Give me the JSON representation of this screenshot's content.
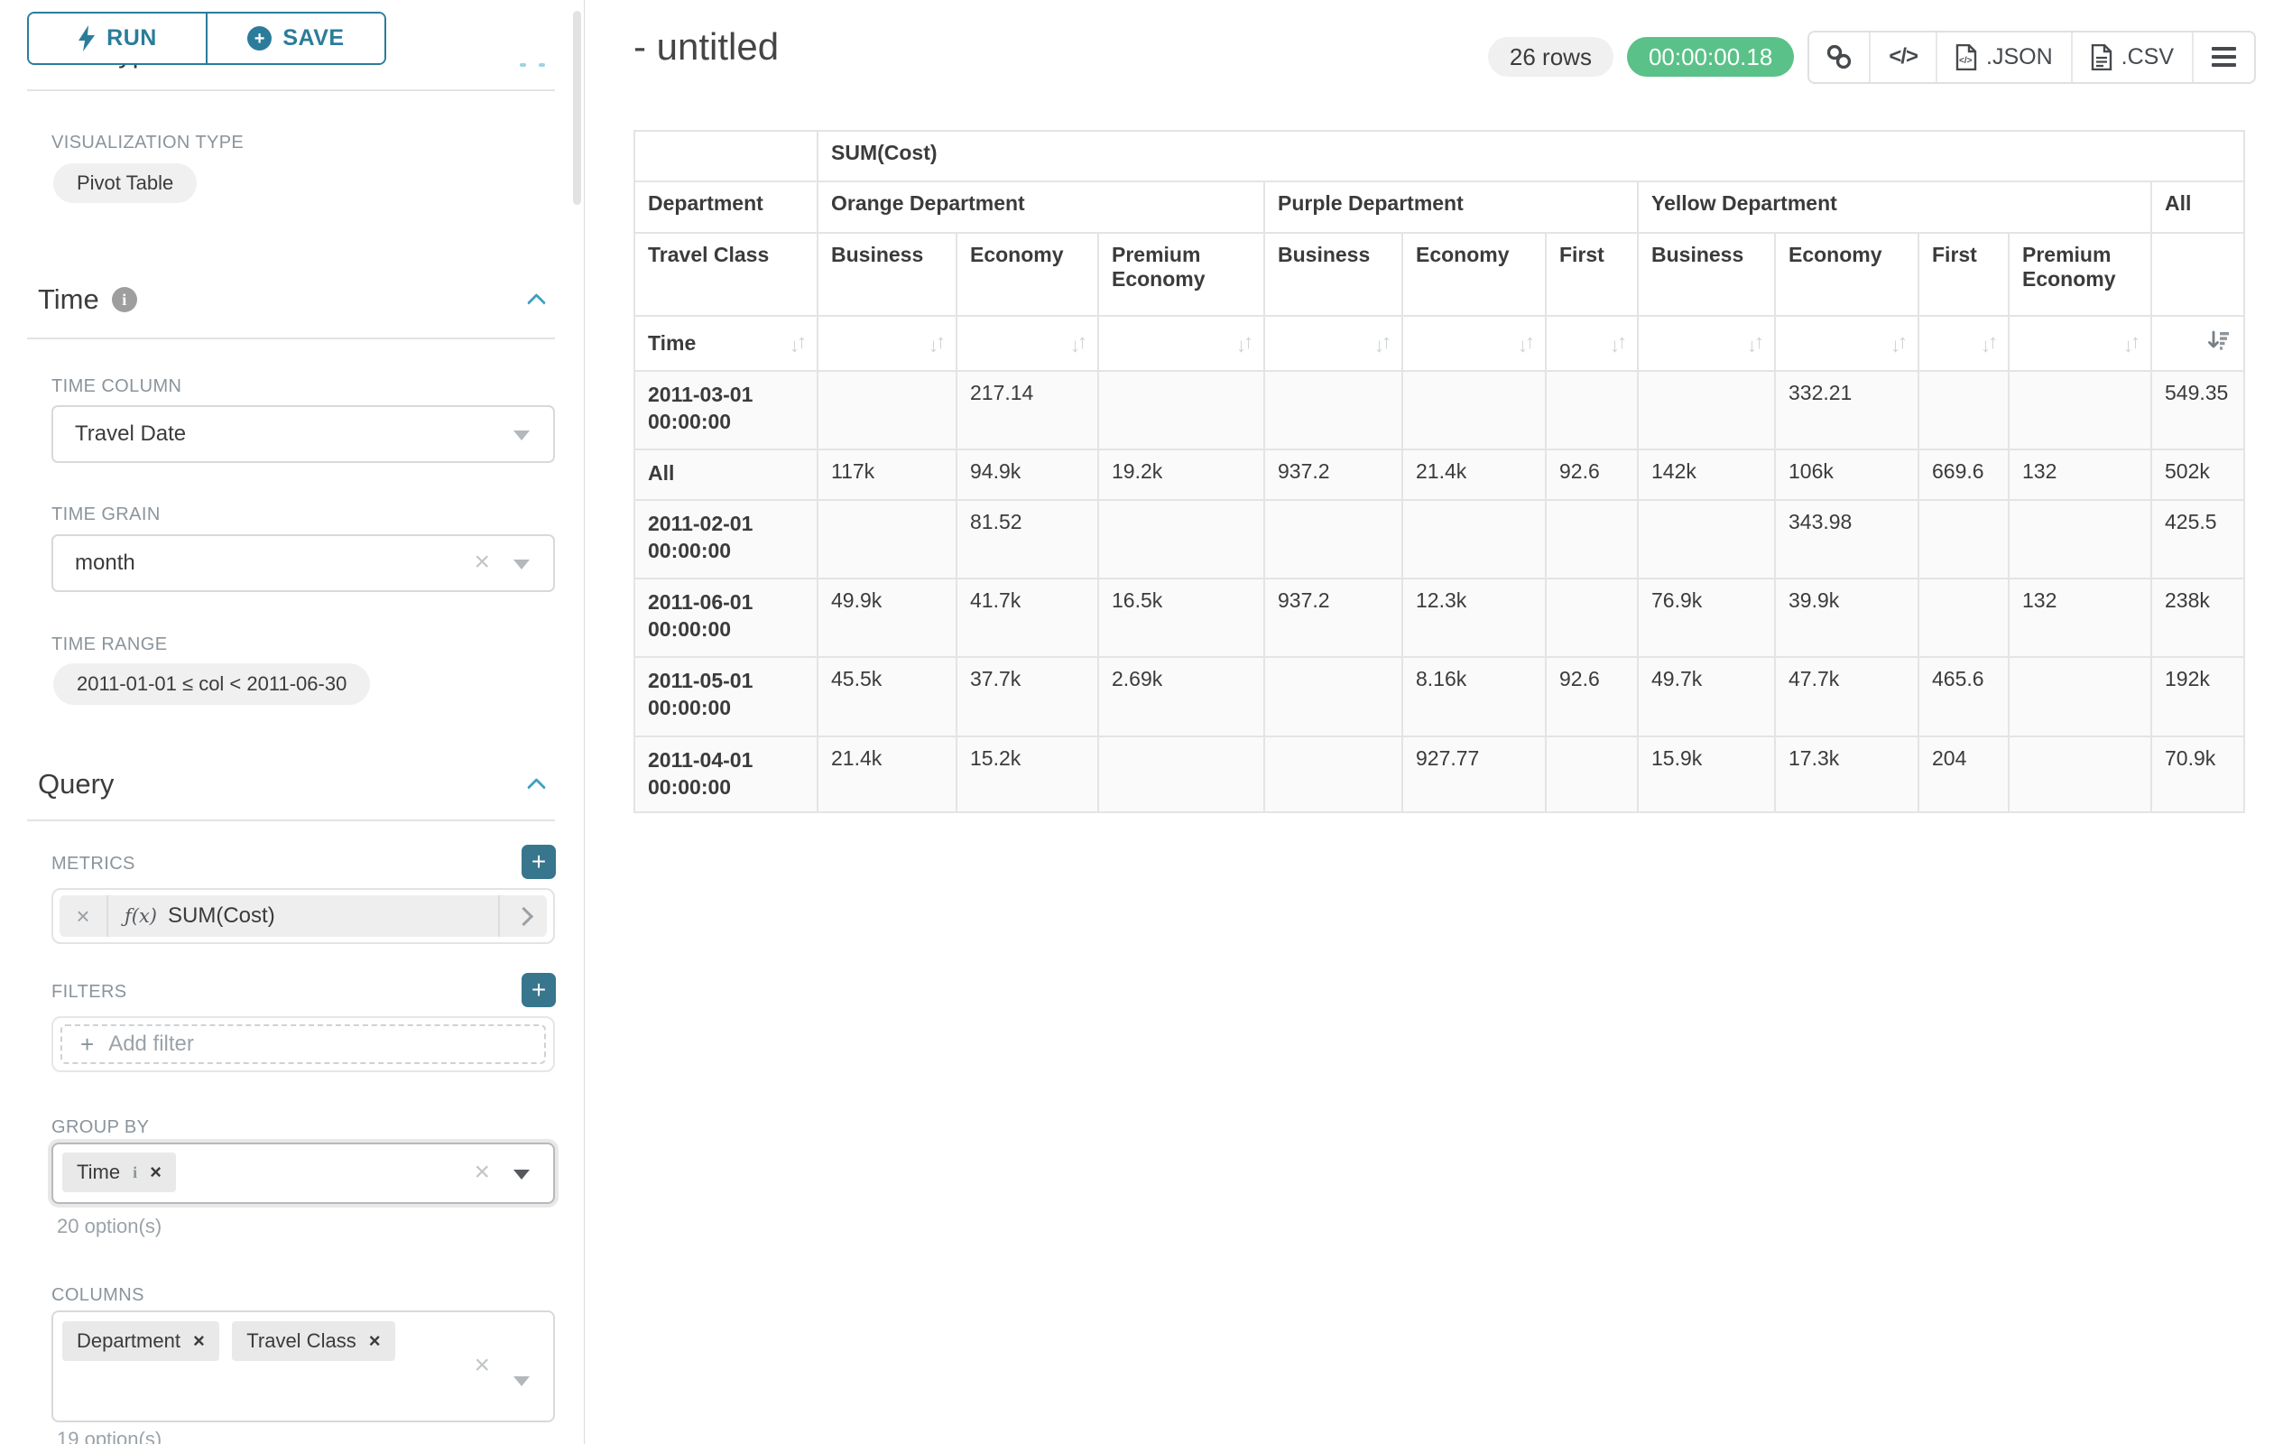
{
  "colors": {
    "accent_teal": "#2b7c9b",
    "plus_teal": "#37768c",
    "timer_green": "#5ac189"
  },
  "sidebar": {
    "run_button": "RUN",
    "save_button": "SAVE",
    "chart_type_heading": "Chart Type",
    "viz_type_label": "VISUALIZATION TYPE",
    "viz_type_value": "Pivot Table",
    "time": {
      "title": "Time",
      "column_label": "TIME COLUMN",
      "column_value": "Travel Date",
      "grain_label": "TIME GRAIN",
      "grain_value": "month",
      "range_label": "TIME RANGE",
      "range_value": "2011-01-01 ≤ col < 2011-06-30"
    },
    "query": {
      "title": "Query",
      "metrics_label": "METRICS",
      "metric_prefix": "ƒ(x)",
      "metric_value": "SUM(Cost)",
      "filters_label": "FILTERS",
      "add_filter_placeholder": "Add filter",
      "group_by_label": "GROUP BY",
      "group_by_tag": "Time",
      "group_by_tag_info": "i",
      "group_by_hint": "20 option(s)",
      "columns_label": "COLUMNS",
      "columns_tags": [
        "Department",
        "Travel Class"
      ],
      "columns_hint": "19 option(s)"
    }
  },
  "header": {
    "title": "- untitled",
    "row_count_badge": "26 rows",
    "query_timer": "00:00:00.18",
    "export_json_label": ".JSON",
    "export_csv_label": ".CSV"
  },
  "pivot": {
    "metric_header": "SUM(Cost)",
    "row2_label": "Department",
    "row3_label": "Travel Class",
    "sort_row_label": "Time",
    "col_groups": [
      {
        "label": "Orange Department",
        "cols": [
          "Business",
          "Economy",
          "Premium Economy"
        ]
      },
      {
        "label": "Purple Department",
        "cols": [
          "Business",
          "Economy",
          "First"
        ]
      },
      {
        "label": "Yellow Department",
        "cols": [
          "Business",
          "Economy",
          "First",
          "Premium Economy"
        ]
      },
      {
        "label": "All",
        "cols": [
          ""
        ]
      }
    ],
    "rows": [
      {
        "label": "2011-03-01 00:00:00",
        "values": [
          "",
          "217.14",
          "",
          "",
          "",
          "",
          "",
          "332.21",
          "",
          "",
          "549.35"
        ]
      },
      {
        "label": "All",
        "values": [
          "117k",
          "94.9k",
          "19.2k",
          "937.2",
          "21.4k",
          "92.6",
          "142k",
          "106k",
          "669.6",
          "132",
          "502k"
        ]
      },
      {
        "label": "2011-02-01 00:00:00",
        "values": [
          "",
          "81.52",
          "",
          "",
          "",
          "",
          "",
          "343.98",
          "",
          "",
          "425.5"
        ]
      },
      {
        "label": "2011-06-01 00:00:00",
        "values": [
          "49.9k",
          "41.7k",
          "16.5k",
          "937.2",
          "12.3k",
          "",
          "76.9k",
          "39.9k",
          "",
          "132",
          "238k"
        ]
      },
      {
        "label": "2011-05-01 00:00:00",
        "values": [
          "45.5k",
          "37.7k",
          "2.69k",
          "",
          "8.16k",
          "92.6",
          "49.7k",
          "47.7k",
          "465.6",
          "",
          "192k"
        ]
      },
      {
        "label": "2011-04-01 00:00:00",
        "values": [
          "21.4k",
          "15.2k",
          "",
          "",
          "927.77",
          "",
          "15.9k",
          "17.3k",
          "204",
          "",
          "70.9k"
        ]
      }
    ]
  }
}
